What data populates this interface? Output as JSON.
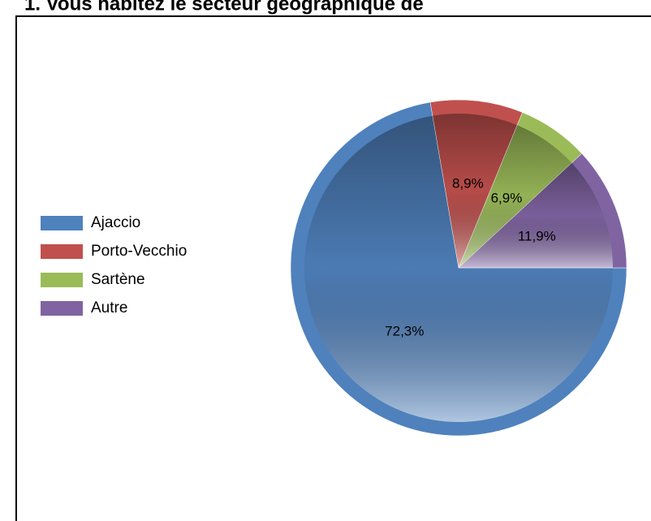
{
  "chart_data": {
    "type": "pie",
    "title": "1. Vous habitez le secteur géographique de",
    "categories": [
      "Ajaccio",
      "Porto-Vecchio",
      "Sartène",
      "Autre"
    ],
    "values": [
      72.3,
      8.9,
      6.9,
      11.9
    ],
    "value_labels": [
      "72,3%",
      "8,9%",
      "6,9%",
      "11,9%"
    ],
    "colors": [
      "#4f81bd",
      "#c0504d",
      "#9bbb59",
      "#8064a2"
    ],
    "legend": "left"
  }
}
